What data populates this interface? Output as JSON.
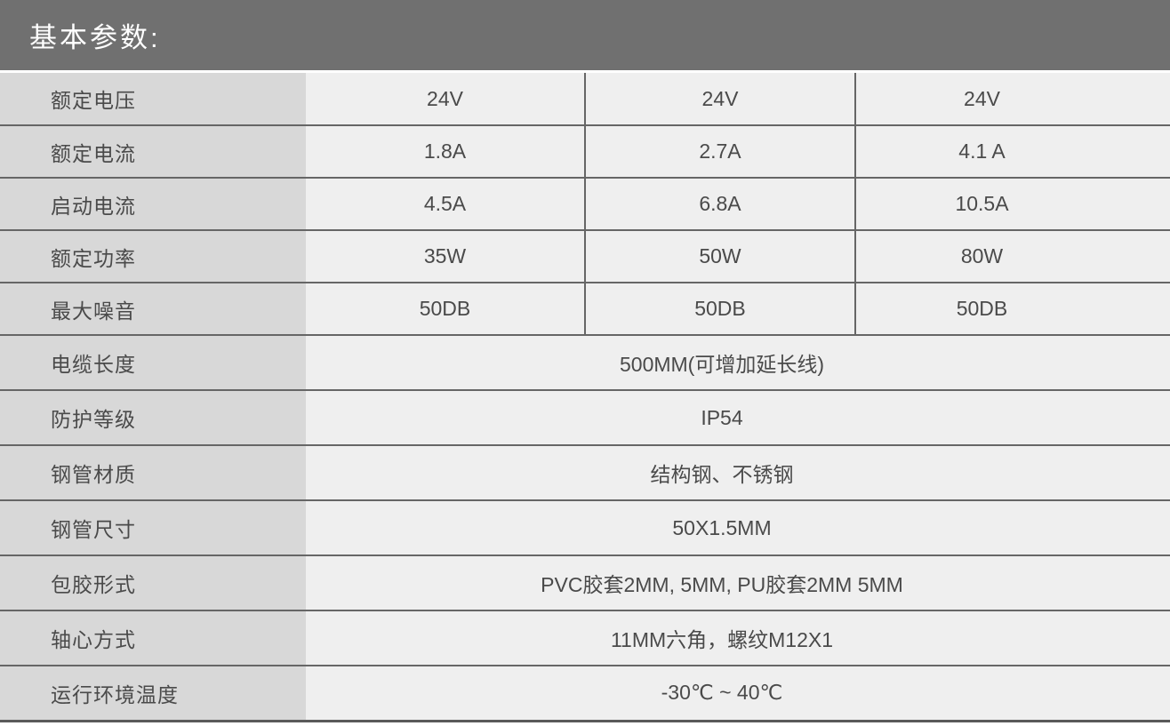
{
  "header": {
    "title": "基本参数:"
  },
  "colors": {
    "header_bg": "#707070",
    "header_text": "#ffffff",
    "label_column_bg": "#d8d8d8",
    "value_cell_bg": "#efefef",
    "grid_line": "#666666",
    "bottom_line": "#5a5a5a",
    "text": "#4a4a4a"
  },
  "table": {
    "rows": [
      {
        "label": "额定电压",
        "values": [
          "24V",
          "24V",
          "24V"
        ]
      },
      {
        "label": "额定电流",
        "values": [
          "1.8A",
          "2.7A",
          "4.1 A"
        ]
      },
      {
        "label": "启动电流",
        "values": [
          "4.5A",
          "6.8A",
          "10.5A"
        ]
      },
      {
        "label": "额定功率",
        "values": [
          "35W",
          "50W",
          "80W"
        ]
      },
      {
        "label": "最大噪音",
        "values": [
          "50DB",
          "50DB",
          "50DB"
        ]
      },
      {
        "label": "电缆长度",
        "merged": "500MM(可增加延长线)"
      },
      {
        "label": "防护等级",
        "merged": "IP54"
      },
      {
        "label": "钢管材质",
        "merged": "结构钢、不锈钢"
      },
      {
        "label": "钢管尺寸",
        "merged": "50X1.5MM"
      },
      {
        "label": "包胶形式",
        "merged": "PVC胶套2MM, 5MM, PU胶套2MM 5MM"
      },
      {
        "label": "轴心方式",
        "merged": "11MM六角，螺纹M12X1"
      },
      {
        "label": "运行环境温度",
        "merged": "-30℃ ~ 40℃"
      }
    ]
  }
}
